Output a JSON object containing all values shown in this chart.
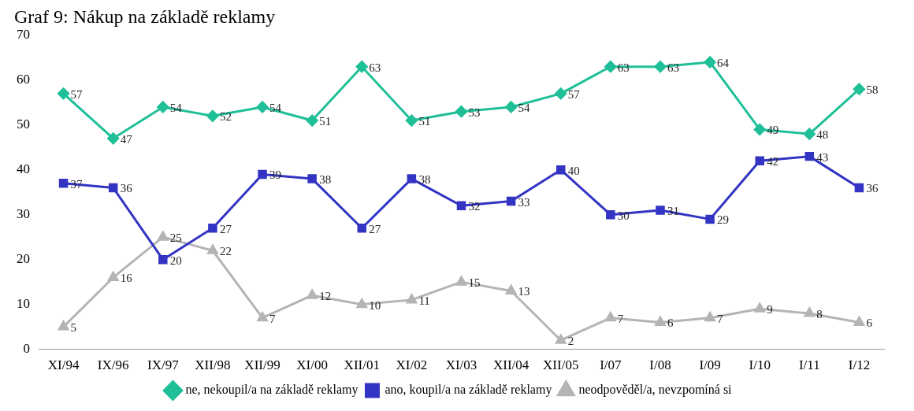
{
  "chart_data": {
    "type": "line",
    "title": "Graf 9: Nákup na základě reklamy",
    "categories": [
      "XI/94",
      "IX/96",
      "IX/97",
      "XII/98",
      "XII/99",
      "XI/00",
      "XII/01",
      "XI/02",
      "XI/03",
      "XII/04",
      "XII/05",
      "I/07",
      "I/08",
      "I/09",
      "I/10",
      "I/11",
      "I/12"
    ],
    "series": [
      {
        "name": "ne, nekoupil/a na základě reklamy",
        "color": "#1fbf98",
        "marker": "diamond",
        "values": [
          57,
          47,
          54,
          52,
          54,
          51,
          63,
          51,
          53,
          54,
          57,
          63,
          63,
          64,
          49,
          48,
          58
        ]
      },
      {
        "name": "ano, koupil/a na základě reklamy",
        "color": "#3333c4",
        "marker": "square",
        "values": [
          37,
          36,
          20,
          27,
          39,
          38,
          27,
          38,
          32,
          33,
          40,
          30,
          31,
          29,
          42,
          43,
          36
        ]
      },
      {
        "name": "neodpověděl/a, nevzpomíná si",
        "color": "#b4b4b4",
        "marker": "triangle",
        "values": [
          5,
          16,
          25,
          22,
          7,
          12,
          10,
          11,
          15,
          13,
          2,
          7,
          6,
          7,
          9,
          8,
          6
        ]
      }
    ],
    "ylim": [
      0,
      70
    ],
    "yticks": [
      0,
      10,
      20,
      30,
      40,
      50,
      60,
      70
    ],
    "grid": false,
    "legend": "bottom",
    "data_labels": true
  }
}
